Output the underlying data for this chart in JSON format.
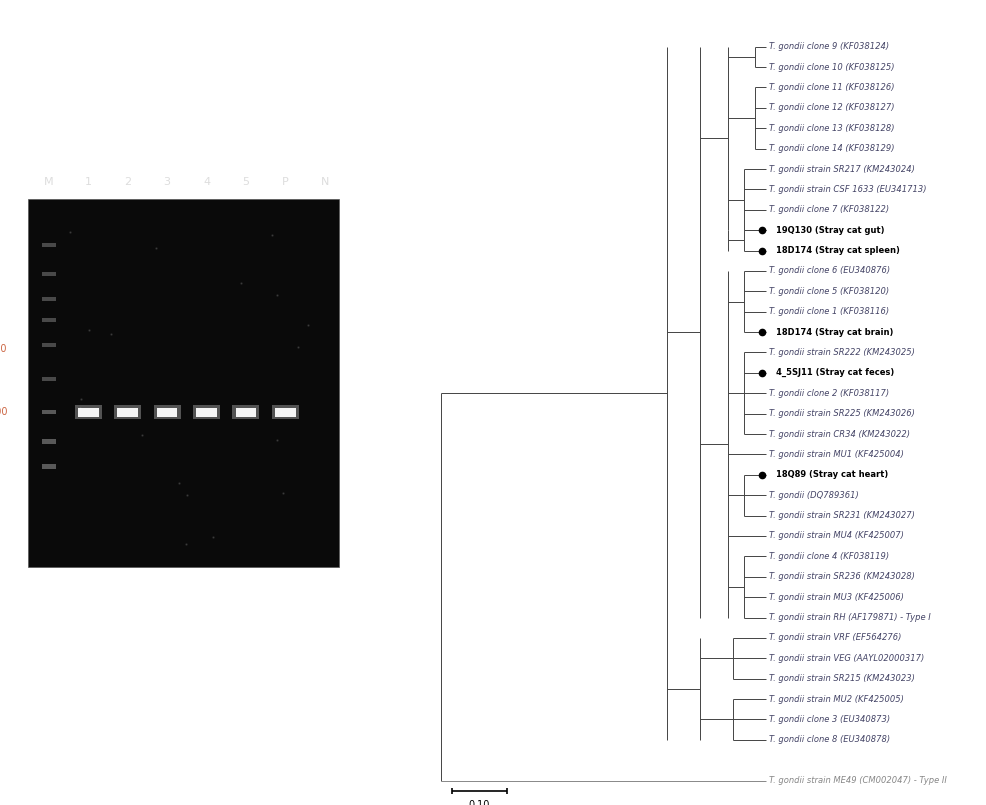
{
  "taxa": [
    {
      "label": "T. gondii clone 9 (KF038124)",
      "bold": false,
      "bullet": false,
      "y": 36
    },
    {
      "label": "T. gondii clone 10 (KF038125)",
      "bold": false,
      "bullet": false,
      "y": 35
    },
    {
      "label": "T. gondii clone 11 (KF038126)",
      "bold": false,
      "bullet": false,
      "y": 34
    },
    {
      "label": "T. gondii clone 12 (KF038127)",
      "bold": false,
      "bullet": false,
      "y": 33
    },
    {
      "label": "T. gondii clone 13 (KF038128)",
      "bold": false,
      "bullet": false,
      "y": 32
    },
    {
      "label": "T. gondii clone 14 (KF038129)",
      "bold": false,
      "bullet": false,
      "y": 31
    },
    {
      "label": "T. gondii strain SR217 (KM243024)",
      "bold": false,
      "bullet": false,
      "y": 30
    },
    {
      "label": "T. gondii strain CSF 1633 (EU341713)",
      "bold": false,
      "bullet": false,
      "y": 29
    },
    {
      "label": "T. gondii clone 7 (KF038122)",
      "bold": false,
      "bullet": false,
      "y": 28
    },
    {
      "label": "19Q130 (Stray cat gut)",
      "bold": true,
      "bullet": true,
      "y": 27
    },
    {
      "label": "18D174 (Stray cat spleen)",
      "bold": true,
      "bullet": true,
      "y": 26
    },
    {
      "label": "T. gondii clone 6 (EU340876)",
      "bold": false,
      "bullet": false,
      "y": 25
    },
    {
      "label": "T. gondii clone 5 (KF038120)",
      "bold": false,
      "bullet": false,
      "y": 24
    },
    {
      "label": "T. gondii clone 1 (KF038116)",
      "bold": false,
      "bullet": false,
      "y": 23
    },
    {
      "label": "18D174 (Stray cat brain)",
      "bold": true,
      "bullet": true,
      "y": 22
    },
    {
      "label": "T. gondii strain SR222 (KM243025)",
      "bold": false,
      "bullet": false,
      "y": 21
    },
    {
      "label": "4_5SJ11 (Stray cat feces)",
      "bold": true,
      "bullet": true,
      "y": 20
    },
    {
      "label": "T. gondii clone 2 (KF038117)",
      "bold": false,
      "bullet": false,
      "y": 19
    },
    {
      "label": "T. gondii strain SR225 (KM243026)",
      "bold": false,
      "bullet": false,
      "y": 18
    },
    {
      "label": "T. gondii strain CR34 (KM243022)",
      "bold": false,
      "bullet": false,
      "y": 17
    },
    {
      "label": "T. gondii strain MU1 (KF425004)",
      "bold": false,
      "bullet": false,
      "y": 16
    },
    {
      "label": "18Q89 (Stray cat heart)",
      "bold": true,
      "bullet": true,
      "y": 15
    },
    {
      "label": "T. gondii (DQ789361)",
      "bold": false,
      "bullet": false,
      "y": 14
    },
    {
      "label": "T. gondii strain SR231 (KM243027)",
      "bold": false,
      "bullet": false,
      "y": 13
    },
    {
      "label": "T. gondii strain MU4 (KF425007)",
      "bold": false,
      "bullet": false,
      "y": 12
    },
    {
      "label": "T. gondii clone 4 (KF038119)",
      "bold": false,
      "bullet": false,
      "y": 11
    },
    {
      "label": "T. gondii strain SR236 (KM243028)",
      "bold": false,
      "bullet": false,
      "y": 10
    },
    {
      "label": "T. gondii strain MU3 (KF425006)",
      "bold": false,
      "bullet": false,
      "y": 9
    },
    {
      "label": "T. gondii strain RH (AF179871) - Type I",
      "bold": false,
      "bullet": false,
      "y": 8
    },
    {
      "label": "T. gondii strain VRF (EF564276)",
      "bold": false,
      "bullet": false,
      "y": 7
    },
    {
      "label": "T. gondii strain VEG (AAYL02000317)",
      "bold": false,
      "bullet": false,
      "y": 6
    },
    {
      "label": "T. gondii strain SR215 (KM243023)",
      "bold": false,
      "bullet": false,
      "y": 5
    },
    {
      "label": "T. gondii strain MU2 (KF425005)",
      "bold": false,
      "bullet": false,
      "y": 4
    },
    {
      "label": "T. gondii clone 3 (EU340873)",
      "bold": false,
      "bullet": false,
      "y": 3
    },
    {
      "label": "T. gondii clone 8 (EU340878)",
      "bold": false,
      "bullet": false,
      "y": 2
    },
    {
      "label": "T. gondii strain ME49 (CM002047) - Type II",
      "bold": false,
      "bullet": false,
      "y": 0
    }
  ],
  "scale_bar_label": "0.10",
  "background_color": "#ffffff",
  "tree_color": "#444444",
  "text_color": "#444466",
  "bold_color": "#000000",
  "outgroup_color": "#888888",
  "gel_bg": "#0a0a0a",
  "gel_band_color": "#ffffff",
  "gel_ladder_color": "#666666",
  "lane_label_color": "#cccccc",
  "marker_color": "#cc6644"
}
